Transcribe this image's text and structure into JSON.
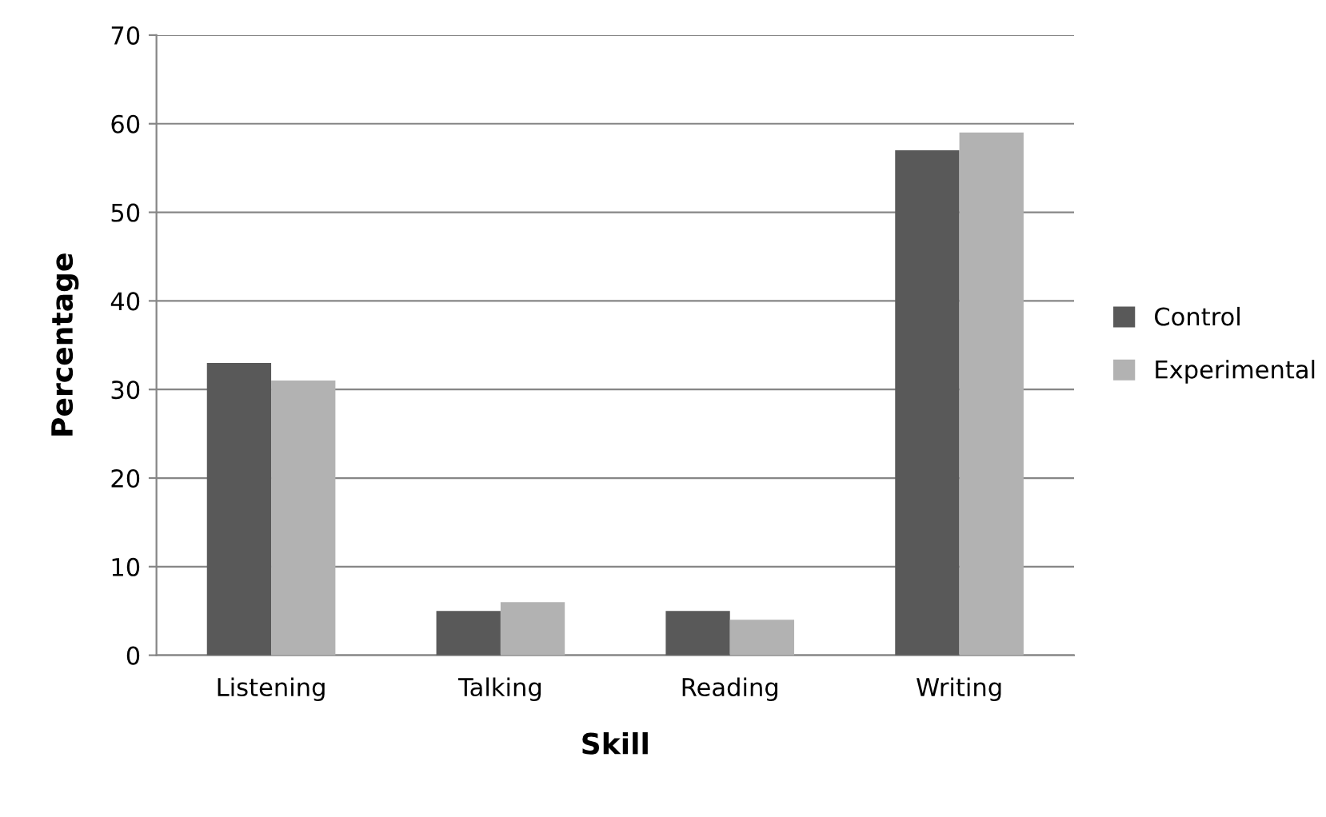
{
  "chart_data": {
    "type": "bar",
    "xlabel": "Skill",
    "ylabel": "Percentage",
    "categories": [
      "Listening",
      "Talking",
      "Reading",
      "Writing"
    ],
    "series": [
      {
        "name": "Control",
        "color": "#595959",
        "values": [
          33,
          5,
          5,
          57
        ]
      },
      {
        "name": "Experimental",
        "color": "#b2b2b2",
        "values": [
          31,
          6,
          4,
          59
        ]
      }
    ],
    "ylim": [
      0,
      70
    ],
    "yticks": [
      0,
      10,
      20,
      30,
      40,
      50,
      60,
      70
    ],
    "grid": "y",
    "legend": "right"
  }
}
